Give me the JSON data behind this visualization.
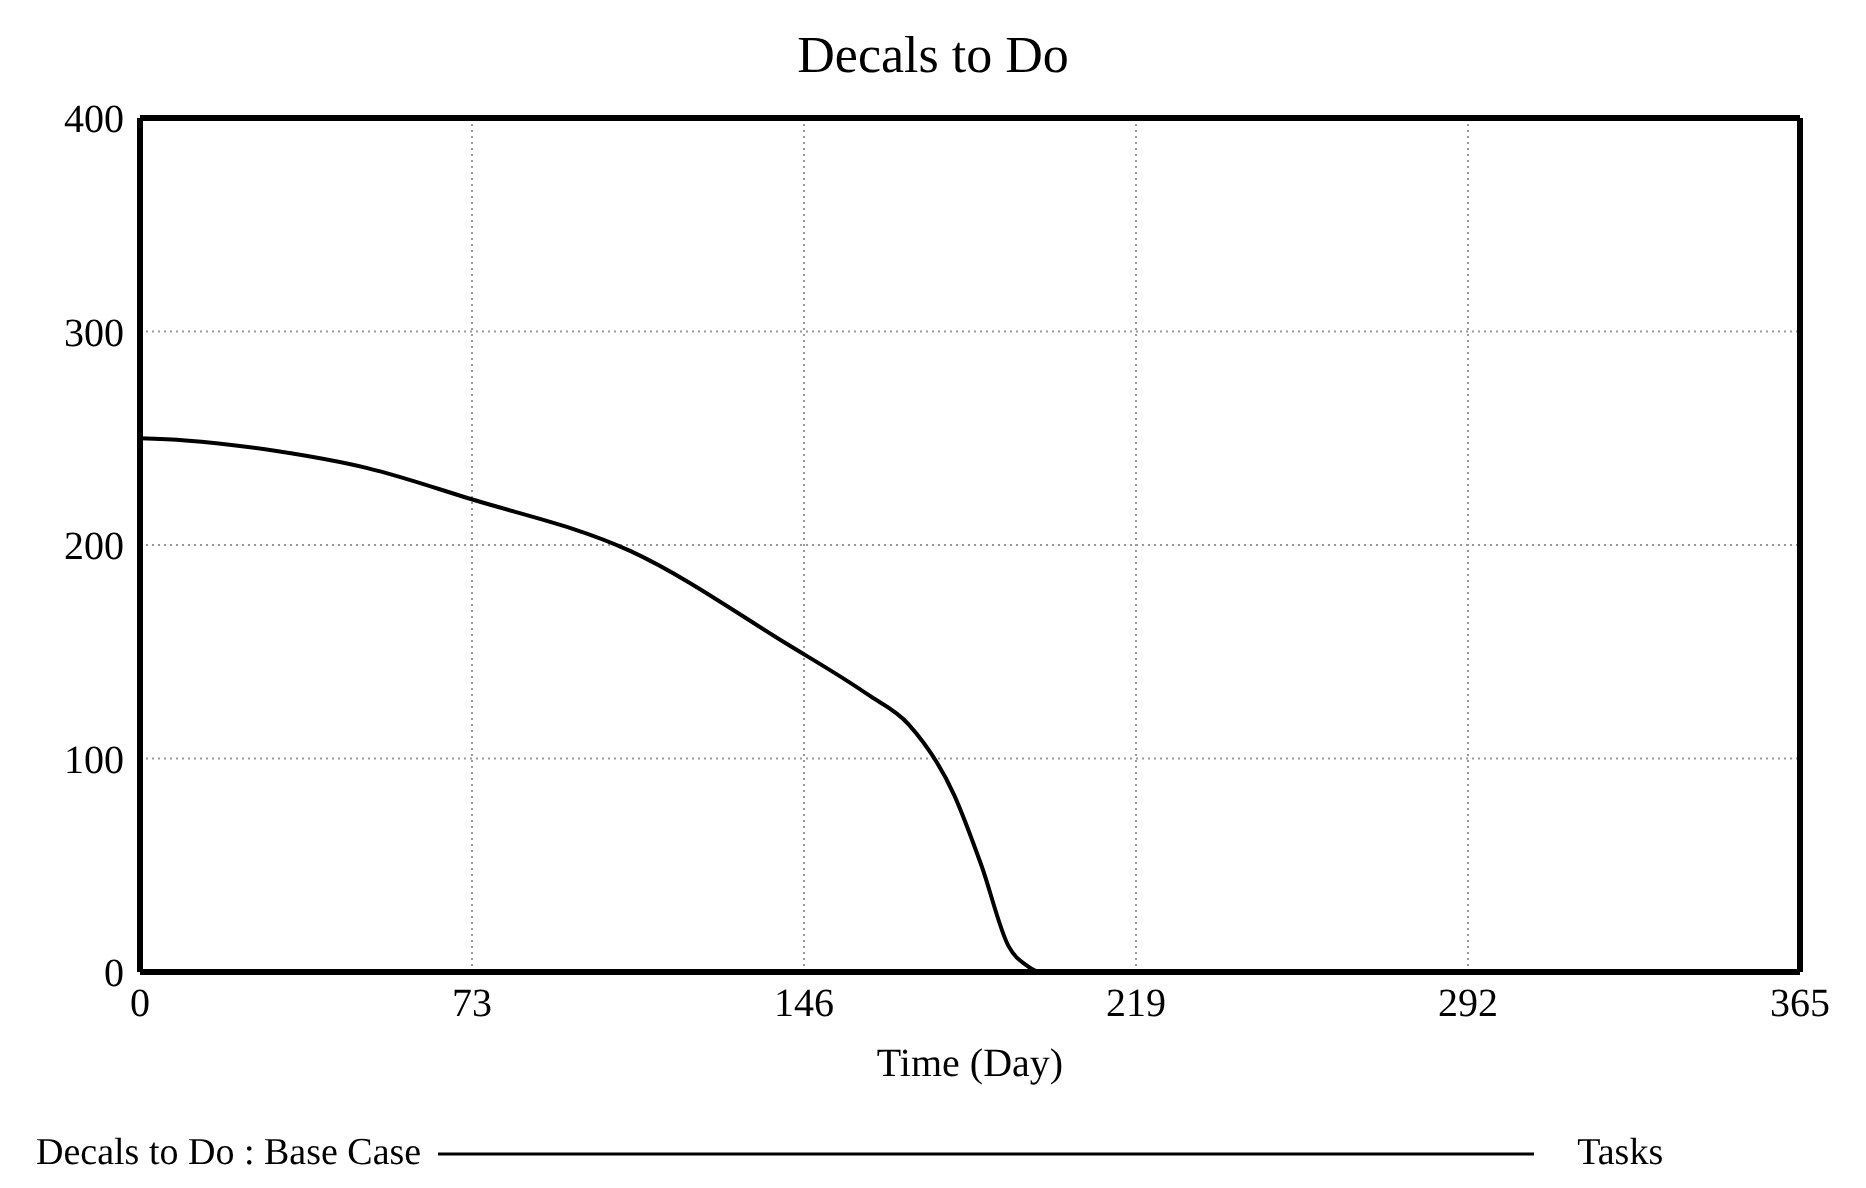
{
  "chart_data": {
    "type": "line",
    "title": "Decals to Do",
    "xlabel": "Time (Day)",
    "x": [
      0,
      10,
      30,
      50,
      72,
      108,
      142,
      160,
      169,
      179,
      185,
      191,
      195,
      198,
      292
    ],
    "series": [
      {
        "name": "Decals to Do : Base Case",
        "color": "#000000",
        "values": [
          250,
          249,
          244,
          236,
          222,
          197,
          154,
          130,
          116,
          83,
          50,
          12,
          3,
          0,
          0
        ]
      }
    ],
    "xlim": [
      0,
      365
    ],
    "xticks": [
      0,
      73,
      146,
      219,
      292,
      365
    ],
    "ylim": [
      0,
      400
    ],
    "yticks": [
      0,
      100,
      200,
      300,
      400
    ],
    "grid": true,
    "legend": "bottom",
    "marker": "none",
    "line_style": "solid",
    "annotations": [
      "Tasks"
    ]
  }
}
